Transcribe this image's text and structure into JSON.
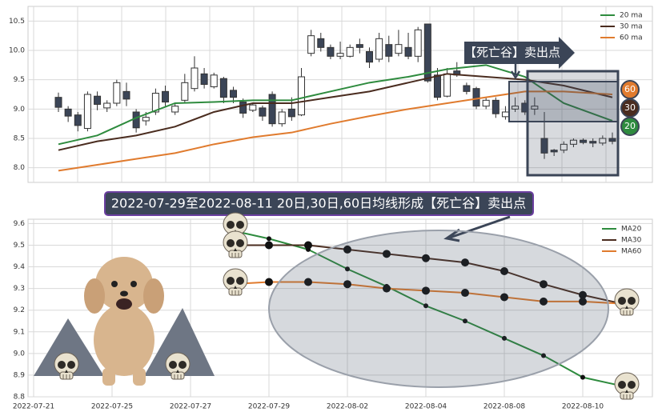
{
  "banner": "2022-07-29至2022-08-11 20日,30日,60日均线形成【死亡谷】卖出点",
  "chart_data": [
    {
      "type": "candlestick",
      "open": [
        9.2,
        9.0,
        8.9,
        8.67,
        9.22,
        9.02,
        9.1,
        9.3,
        8.95,
        8.8,
        8.95,
        9.3,
        8.95,
        9.15,
        9.35,
        9.6,
        9.38,
        9.52,
        9.32,
        9.12,
        8.98,
        9.02,
        9.25,
        8.75,
        9.0,
        8.9,
        9.95,
        10.2,
        10.05,
        9.9,
        9.9,
        10.1,
        9.98,
        9.85,
        10.1,
        9.95,
        10.05,
        9.9,
        10.45,
        9.58,
        9.22,
        9.65,
        9.4,
        9.35,
        9.05,
        9.15,
        8.87,
        9.0,
        9.1,
        9.0,
        8.5,
        8.3,
        8.3,
        8.4,
        8.47,
        8.45,
        8.42,
        8.5
      ],
      "high": [
        9.28,
        9.05,
        8.95,
        9.3,
        9.3,
        9.15,
        9.5,
        9.45,
        9.0,
        8.95,
        9.35,
        9.4,
        9.1,
        9.6,
        9.9,
        9.7,
        9.62,
        9.55,
        9.38,
        9.18,
        9.1,
        9.06,
        9.3,
        9.0,
        9.2,
        9.7,
        10.35,
        10.3,
        10.1,
        10.15,
        10.1,
        10.2,
        10.05,
        10.3,
        10.25,
        10.35,
        10.3,
        10.4,
        10.45,
        9.7,
        9.7,
        9.8,
        9.45,
        9.38,
        9.2,
        9.2,
        9.05,
        9.2,
        9.15,
        9.2,
        8.95,
        8.32,
        8.45,
        8.5,
        8.5,
        8.5,
        8.55,
        8.6
      ],
      "low": [
        8.95,
        8.78,
        8.62,
        8.62,
        8.98,
        8.95,
        9.05,
        9.05,
        8.6,
        8.72,
        8.9,
        9.05,
        8.9,
        9.1,
        9.3,
        9.35,
        9.35,
        9.1,
        9.1,
        8.85,
        8.95,
        8.8,
        8.7,
        8.7,
        8.8,
        8.88,
        9.9,
        9.98,
        9.85,
        9.85,
        9.88,
        9.95,
        9.7,
        9.8,
        9.8,
        9.9,
        9.85,
        9.8,
        9.45,
        9.15,
        9.2,
        9.55,
        9.25,
        9.0,
        9.0,
        8.85,
        8.82,
        8.95,
        8.9,
        8.9,
        8.15,
        8.2,
        8.25,
        8.35,
        8.4,
        8.35,
        8.38,
        8.4
      ],
      "close": [
        9.03,
        8.88,
        8.72,
        9.25,
        9.08,
        9.1,
        9.45,
        9.17,
        8.68,
        8.86,
        9.27,
        9.12,
        9.05,
        9.45,
        9.7,
        9.42,
        9.58,
        9.2,
        9.2,
        8.93,
        9.07,
        8.88,
        8.75,
        8.95,
        8.87,
        9.55,
        10.25,
        10.05,
        9.9,
        9.95,
        10.05,
        10.05,
        9.8,
        10.2,
        9.9,
        10.1,
        9.9,
        10.35,
        9.48,
        9.2,
        9.6,
        9.58,
        9.3,
        9.05,
        9.15,
        8.92,
        8.95,
        9.05,
        8.95,
        9.05,
        8.25,
        8.27,
        8.4,
        8.47,
        8.43,
        8.42,
        8.5,
        8.45
      ],
      "up_color": "#ffffff",
      "down_color": "#3b4557",
      "ma_x": [
        0,
        4,
        8,
        12,
        16,
        20,
        24,
        28,
        32,
        36,
        40,
        44,
        48,
        52,
        57
      ],
      "series": [
        {
          "name": "20 ma",
          "color": "#2e8b3e",
          "values": [
            8.4,
            8.55,
            8.85,
            9.1,
            9.12,
            9.15,
            9.15,
            9.3,
            9.45,
            9.55,
            9.68,
            9.75,
            9.55,
            9.1,
            8.8
          ]
        },
        {
          "name": "30 ma",
          "color": "#4a2c1f",
          "values": [
            8.3,
            8.45,
            8.55,
            8.7,
            8.95,
            9.1,
            9.1,
            9.2,
            9.3,
            9.45,
            9.6,
            9.55,
            9.5,
            9.4,
            9.2
          ]
        },
        {
          "name": "60 ma",
          "color": "#e07b2e",
          "values": [
            7.95,
            8.05,
            8.15,
            8.25,
            8.4,
            8.52,
            8.6,
            8.75,
            8.88,
            9.0,
            9.1,
            9.2,
            9.3,
            9.3,
            9.25
          ]
        }
      ],
      "ylim": [
        7.75,
        10.75
      ],
      "yticks": [
        {
          "value": 8,
          "label": "8.0"
        },
        8.5,
        {
          "value": 9,
          "label": "9.0"
        },
        9.5,
        {
          "value": 10,
          "label": "10.0"
        },
        10.5
      ],
      "grid": true,
      "annotation": "【死亡谷】卖出点",
      "badges": [
        {
          "label": "60",
          "color": "#e07b2e"
        },
        {
          "label": "30",
          "color": "#4a2c1f"
        },
        {
          "label": "20",
          "color": "#2e8b3e"
        }
      ]
    },
    {
      "type": "line",
      "categories": [
        "2022-07-21",
        null,
        "2022-07-25",
        null,
        "2022-07-27",
        null,
        "2022-07-29",
        null,
        "2022-08-02",
        null,
        "2022-08-04",
        null,
        "2022-08-08",
        null,
        "2022-08-10",
        null
      ],
      "series": [
        {
          "name": "MA20",
          "color": "#2e8b3e",
          "values": [
            null,
            null,
            null,
            null,
            null,
            9.57,
            9.53,
            9.48,
            9.39,
            9.31,
            9.22,
            9.15,
            9.07,
            8.99,
            8.89,
            8.85
          ]
        },
        {
          "name": "MA30",
          "color": "#4a2c1f",
          "values": [
            null,
            null,
            null,
            null,
            null,
            9.5,
            9.5,
            9.5,
            9.48,
            9.46,
            9.44,
            9.42,
            9.38,
            9.32,
            9.27,
            9.23
          ]
        },
        {
          "name": "MA60",
          "color": "#e07b2e",
          "values": [
            null,
            null,
            null,
            null,
            null,
            9.32,
            9.33,
            9.33,
            9.32,
            9.3,
            9.29,
            9.28,
            9.26,
            9.24,
            9.24,
            9.23
          ]
        }
      ],
      "ylim": [
        8.8,
        9.62
      ],
      "yticks": [
        8.8,
        8.9,
        {
          "value": 9,
          "label": "9.0"
        },
        9.1,
        9.2,
        9.3,
        9.4,
        9.5,
        9.6
      ],
      "grid": true
    }
  ]
}
